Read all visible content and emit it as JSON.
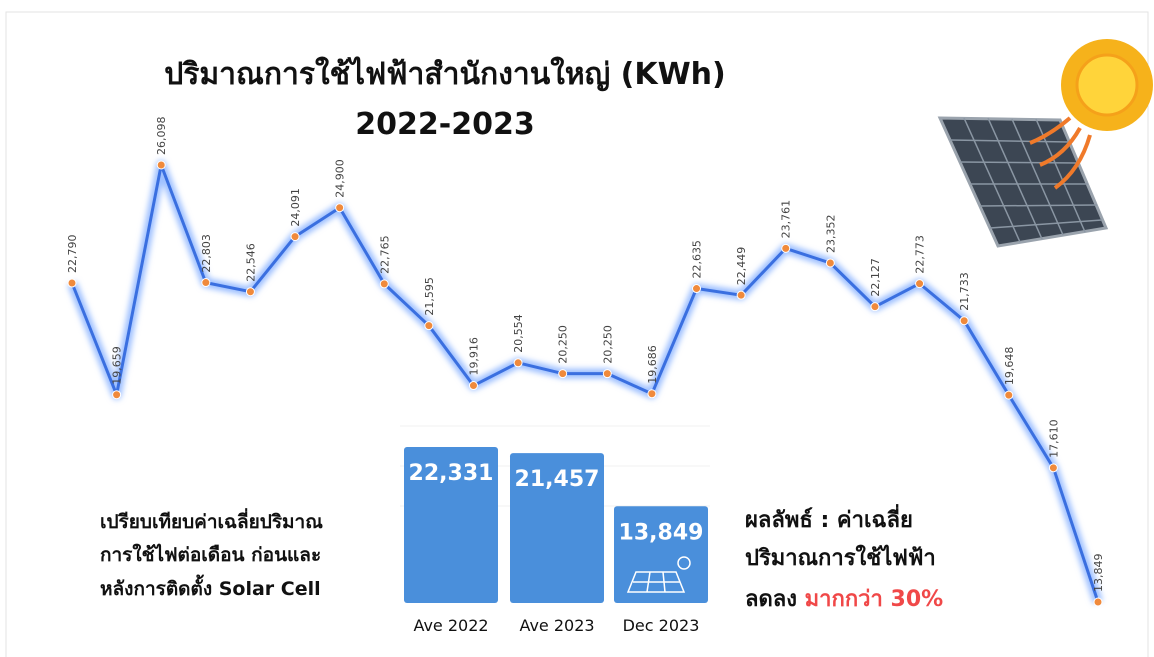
{
  "chart_data": [
    {
      "type": "line",
      "title": "ปริมาณการใช้ไฟฟ้าสำนักงานใหญ่ (KWh)",
      "subtitle": "2022-2023",
      "color": "#3a6fe0",
      "marker_color": "#f08a3c",
      "values": [
        22790,
        19659,
        26098,
        22803,
        22546,
        24091,
        24900,
        22765,
        21595,
        19916,
        20554,
        20250,
        20250,
        19686,
        22635,
        22449,
        23761,
        23352,
        22127,
        22773,
        21733,
        19648,
        17610,
        13849
      ],
      "value_labels": [
        "22,790",
        "19,659",
        "26,098",
        "22,803",
        "22,546",
        "24,091",
        "24,900",
        "22,765",
        "21,595",
        "19,916",
        "20,554",
        "20,250",
        "20,250",
        "19,686",
        "22,635",
        "22,449",
        "23,761",
        "23,352",
        "22,127",
        "22,773",
        "21,733",
        "19,648",
        "17,610",
        "13,849"
      ]
    },
    {
      "type": "bar",
      "color": "#4a8fdb",
      "categories": [
        "Ave 2022",
        "Ave 2023",
        "Dec 2023"
      ],
      "values": [
        22331,
        21457,
        13849
      ],
      "value_labels": [
        "22,331",
        "21,457",
        "13,849"
      ]
    }
  ],
  "notes": {
    "comparison": [
      "เปรียบเทียบค่าเฉลี่ยปริมาณ",
      "การใช้ไฟต่อเดือน ก่อนและ",
      "หลังการติดตั้ง Solar Cell"
    ],
    "result": [
      "ผลลัพธ์ : ค่าเฉลี่ย",
      "ปริมาณการใช้ไฟฟ้า",
      "ลดลง"
    ],
    "result_highlight": "มากกว่า 30%"
  }
}
